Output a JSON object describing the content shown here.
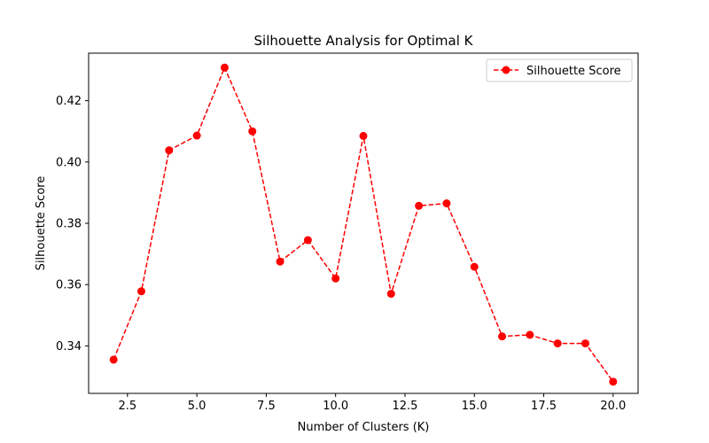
{
  "chart_data": {
    "type": "line",
    "title": "Silhouette Analysis for Optimal K",
    "xlabel": "Number of Clusters (K)",
    "ylabel": "Silhouette Score",
    "xlim": [
      1.1,
      20.9
    ],
    "ylim": [
      0.3245,
      0.4355
    ],
    "xticks": [
      2.5,
      5.0,
      7.5,
      10.0,
      12.5,
      15.0,
      17.5,
      20.0
    ],
    "xtick_labels": [
      "2.5",
      "5.0",
      "7.5",
      "10.0",
      "12.5",
      "15.0",
      "17.5",
      "20.0"
    ],
    "yticks": [
      0.34,
      0.36,
      0.38,
      0.4,
      0.42
    ],
    "ytick_labels": [
      "0.34",
      "0.36",
      "0.38",
      "0.40",
      "0.42"
    ],
    "grid": false,
    "legend_position": "top-right",
    "series": [
      {
        "name": "Silhouette Score",
        "color": "#ff0000",
        "line_style": "dashed",
        "marker": "circle",
        "x": [
          2,
          3,
          4,
          5,
          6,
          7,
          8,
          9,
          10,
          11,
          12,
          13,
          14,
          15,
          16,
          17,
          18,
          19,
          20
        ],
        "y": [
          0.3355,
          0.3578,
          0.4038,
          0.4086,
          0.4308,
          0.41,
          0.3675,
          0.3745,
          0.362,
          0.4085,
          0.357,
          0.3857,
          0.3865,
          0.3658,
          0.3431,
          0.3436,
          0.3408,
          0.3408,
          0.3283
        ]
      }
    ]
  }
}
